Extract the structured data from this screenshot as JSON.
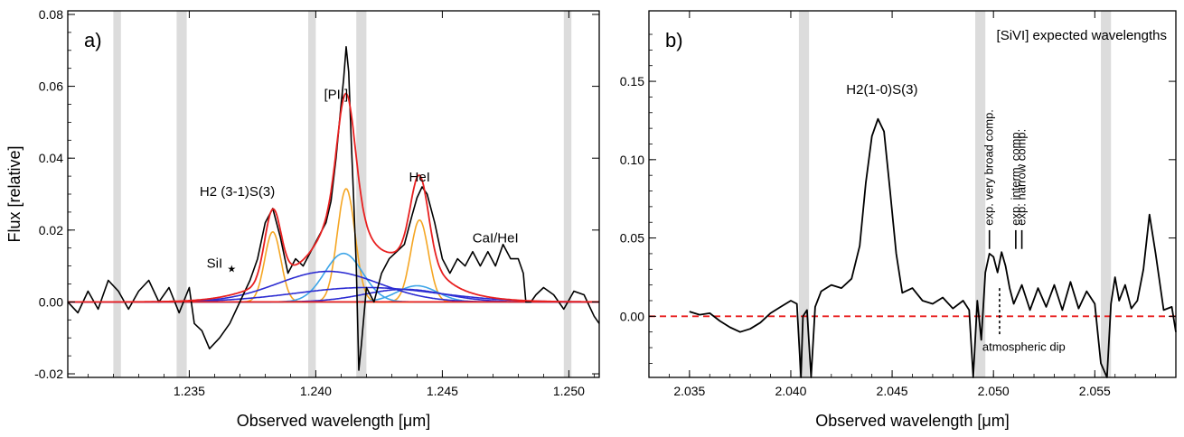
{
  "chart_data": [
    {
      "panel": "a)",
      "type": "line",
      "xlabel": "Observed wavelength [μm]",
      "ylabel": "Flux [relative]",
      "xlim": [
        1.2302,
        1.2512
      ],
      "ylim": [
        -0.021,
        0.081
      ],
      "xticks": [
        1.235,
        1.24,
        1.245,
        1.25
      ],
      "xtick_labels": [
        "1.235",
        "1.240",
        "1.245",
        "1.250"
      ],
      "yticks": [
        -0.02,
        0.0,
        0.02,
        0.04,
        0.06,
        0.08
      ],
      "ytick_labels": [
        "-0.02",
        "0.00",
        "0.02",
        "0.04",
        "0.06",
        "0.08"
      ],
      "grid": false,
      "zero_line": {
        "y": 0,
        "color": "#e82020",
        "style": "solid"
      },
      "masked_regions": [
        [
          1.232,
          1.2323
        ],
        [
          1.2345,
          1.2349
        ],
        [
          1.2397,
          1.24
        ],
        [
          1.2416,
          1.242
        ],
        [
          1.2498,
          1.2501
        ]
      ],
      "annotations": [
        {
          "text": "H2 (3-1)S(3)",
          "x": 1.2369,
          "y": 0.0295
        },
        {
          "text": "[PII]",
          "x": 1.2408,
          "y": 0.0565
        },
        {
          "text": "HeI",
          "x": 1.2441,
          "y": 0.0335
        },
        {
          "text": "CaI/HeI",
          "x": 1.2471,
          "y": 0.0165
        },
        {
          "text": "SiI",
          "x": 1.236,
          "y": 0.0095
        }
      ],
      "colors": {
        "observed": "#000000",
        "total_fit": "#e82020",
        "narrow": "#f5a623",
        "intermediate": "#3da5e8",
        "broad": "#2c2cd2"
      },
      "components": [
        {
          "role": "narrow",
          "amp": 0.0195,
          "center": 1.2383,
          "sigma": 0.00032
        },
        {
          "role": "narrow",
          "amp": 0.0315,
          "center": 1.2412,
          "sigma": 0.00035
        },
        {
          "role": "narrow",
          "amp": 0.0228,
          "center": 1.2441,
          "sigma": 0.00035
        },
        {
          "role": "intermediate",
          "amp": 0.0135,
          "center": 1.2411,
          "sigma": 0.00075
        },
        {
          "role": "intermediate",
          "amp": 0.0045,
          "center": 1.244,
          "sigma": 0.0008
        },
        {
          "role": "broad",
          "amp": 0.0085,
          "center": 1.2405,
          "sigma": 0.002
        },
        {
          "role": "broad",
          "amp": 0.0035,
          "center": 1.2435,
          "sigma": 0.0016
        },
        {
          "role": "broad",
          "amp": 0.004,
          "center": 1.242,
          "sigma": 0.0028
        }
      ],
      "series": [
        {
          "role": "observed",
          "x": [
            1.2302,
            1.2306,
            1.231,
            1.2314,
            1.2318,
            1.2322,
            1.2326,
            1.233,
            1.2334,
            1.2338,
            1.2342,
            1.2346,
            1.235,
            1.2352,
            1.2355,
            1.2358,
            1.2362,
            1.2366,
            1.237,
            1.2374,
            1.2377,
            1.238,
            1.2383,
            1.2386,
            1.2389,
            1.2392,
            1.2395,
            1.2398,
            1.2401,
            1.2404,
            1.2406,
            1.2408,
            1.241,
            1.2411,
            1.2412,
            1.2413,
            1.2414,
            1.2415,
            1.2416,
            1.2417,
            1.2418,
            1.242,
            1.2423,
            1.2426,
            1.2429,
            1.2432,
            1.2435,
            1.2438,
            1.244,
            1.2442,
            1.2444,
            1.2447,
            1.245,
            1.2453,
            1.2456,
            1.2459,
            1.2462,
            1.2465,
            1.2468,
            1.2471,
            1.2474,
            1.2477,
            1.248,
            1.2482,
            1.2483,
            1.2484,
            1.2485,
            1.2487,
            1.249,
            1.2494,
            1.2498,
            1.2502,
            1.2506,
            1.251,
            1.2512
          ],
          "y": [
            0.0,
            -0.003,
            0.003,
            -0.002,
            0.006,
            0.003,
            -0.002,
            0.003,
            0.006,
            0.0,
            0.004,
            -0.003,
            0.004,
            -0.006,
            -0.008,
            -0.013,
            -0.01,
            -0.006,
            0.0,
            0.006,
            0.012,
            0.022,
            0.026,
            0.018,
            0.008,
            0.012,
            0.01,
            0.014,
            0.018,
            0.022,
            0.028,
            0.04,
            0.055,
            0.062,
            0.071,
            0.064,
            0.045,
            0.028,
            0.01,
            -0.019,
            -0.012,
            0.004,
            0.0,
            0.008,
            0.012,
            0.014,
            0.016,
            0.024,
            0.029,
            0.032,
            0.03,
            0.022,
            0.012,
            0.008,
            0.012,
            0.01,
            0.014,
            0.01,
            0.014,
            0.01,
            0.016,
            0.012,
            0.012,
            0.008,
            0.0,
            0.0,
            0.0,
            0.002,
            0.004,
            0.002,
            -0.002,
            0.003,
            0.002,
            -0.004,
            -0.006
          ]
        }
      ]
    },
    {
      "panel": "b)",
      "type": "line",
      "xlabel": "Observed wavelength [μm]",
      "xlim": [
        2.033,
        2.059
      ],
      "ylim": [
        -0.039,
        0.195
      ],
      "xticks": [
        2.035,
        2.04,
        2.045,
        2.05,
        2.055
      ],
      "xtick_labels": [
        "2.035",
        "2.040",
        "2.045",
        "2.050",
        "2.055"
      ],
      "yticks": [
        0.0,
        0.05,
        0.1,
        0.15
      ],
      "ytick_labels": [
        "0.00",
        "0.05",
        "0.10",
        "0.15"
      ],
      "grid": false,
      "zero_line": {
        "y": 0,
        "color": "#e82020",
        "style": "dashed"
      },
      "masked_regions": [
        [
          2.0404,
          2.0409
        ],
        [
          2.0491,
          2.0496
        ],
        [
          2.0553,
          2.0558
        ]
      ],
      "colors": {
        "observed": "#000000"
      },
      "legend_title": "[SiVI] expected wavelengths",
      "annotations": [
        {
          "text": "H2(1-0)S(3)",
          "x": 2.0445,
          "y": 0.142
        },
        {
          "text": "atmospheric dip",
          "x": 2.0515,
          "y": -0.022
        }
      ],
      "marker_lines": [
        {
          "label": "exp. very broad comp.",
          "x": 2.0498
        },
        {
          "label": "exp. interm. comp.",
          "x": 2.0511
        },
        {
          "label": "exp. narrow comp.",
          "x": 2.0514
        }
      ],
      "dip_marker": {
        "x": 2.0503,
        "y_top": 0.018,
        "y_bottom": -0.012
      },
      "series": [
        {
          "role": "observed",
          "x": [
            2.035,
            2.0355,
            2.036,
            2.0365,
            2.037,
            2.0375,
            2.038,
            2.0385,
            2.039,
            2.0395,
            2.04,
            2.0403,
            2.0405,
            2.0406,
            2.0408,
            2.041,
            2.0412,
            2.0415,
            2.042,
            2.0425,
            2.043,
            2.0434,
            2.0437,
            2.044,
            2.0443,
            2.0446,
            2.0449,
            2.0452,
            2.0455,
            2.046,
            2.0465,
            2.047,
            2.0475,
            2.048,
            2.0485,
            2.0488,
            2.049,
            2.0492,
            2.0494,
            2.0496,
            2.0498,
            2.05,
            2.0502,
            2.0504,
            2.0506,
            2.0508,
            2.051,
            2.0514,
            2.0518,
            2.0522,
            2.0526,
            2.053,
            2.0534,
            2.0538,
            2.0542,
            2.0546,
            2.055,
            2.0553,
            2.0556,
            2.0558,
            2.056,
            2.0562,
            2.0565,
            2.0568,
            2.0571,
            2.0574,
            2.0577,
            2.058,
            2.0584,
            2.0588,
            2.059
          ],
          "y": [
            0.003,
            0.001,
            0.002,
            -0.003,
            -0.007,
            -0.01,
            -0.008,
            -0.004,
            0.002,
            0.006,
            0.01,
            0.008,
            -0.039,
            0.0,
            0.004,
            -0.039,
            0.006,
            0.016,
            0.02,
            0.018,
            0.024,
            0.045,
            0.085,
            0.115,
            0.126,
            0.118,
            0.08,
            0.04,
            0.015,
            0.018,
            0.01,
            0.008,
            0.012,
            0.005,
            0.01,
            0.004,
            -0.039,
            0.01,
            -0.015,
            0.028,
            0.04,
            0.038,
            0.028,
            0.041,
            0.032,
            0.018,
            0.008,
            0.02,
            0.004,
            0.018,
            0.006,
            0.02,
            0.004,
            0.022,
            0.005,
            0.016,
            0.008,
            -0.03,
            -0.039,
            0.008,
            0.025,
            0.01,
            0.02,
            0.005,
            0.01,
            0.03,
            0.065,
            0.04,
            0.004,
            0.006,
            -0.01
          ]
        }
      ]
    }
  ]
}
